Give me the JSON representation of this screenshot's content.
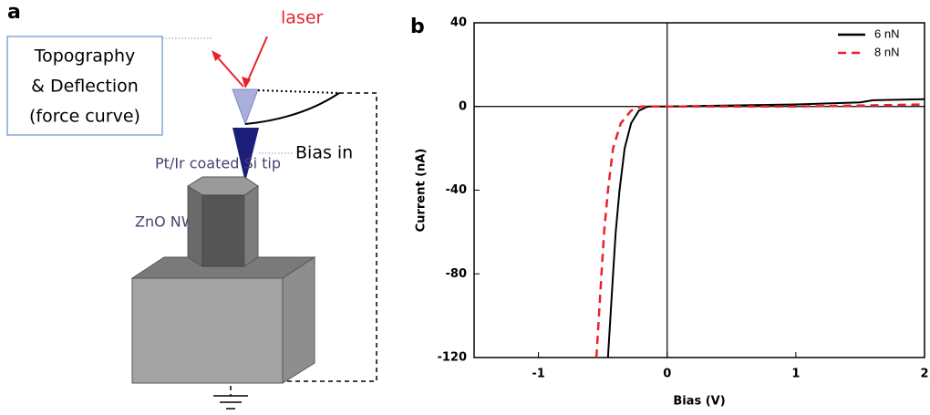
{
  "panels": {
    "a": "a",
    "b": "b"
  },
  "diagram": {
    "laser": "laser",
    "box_lines": [
      "Topography",
      "& Deflection",
      "(force curve)"
    ],
    "tip_label": "Pt/Ir coated Si tip",
    "bias_label": "Bias in",
    "nw_label": "ZnO NW"
  },
  "chart_data": {
    "type": "line",
    "xlabel": "Bias (V)",
    "ylabel": "Current (nA)",
    "xlim": [
      -1.5,
      2
    ],
    "xticks": [
      -1,
      0,
      1,
      2
    ],
    "ylim": [
      -120,
      40
    ],
    "yticks": [
      -120,
      -80,
      -40,
      0,
      40
    ],
    "zero_lines": true,
    "legend": "upper right",
    "series": [
      {
        "name": "6 nN",
        "color": "#000000",
        "dash": false,
        "x": [
          -0.46,
          -0.44,
          -0.42,
          -0.4,
          -0.37,
          -0.33,
          -0.28,
          -0.22,
          -0.15,
          0,
          0.5,
          1,
          1.5,
          1.6,
          2
        ],
        "values": [
          -120,
          -100,
          -80,
          -60,
          -40,
          -20,
          -8,
          -2,
          0,
          0,
          0.5,
          1,
          2,
          3,
          3.5
        ]
      },
      {
        "name": "8 nN",
        "color": "#e8222a",
        "dash": true,
        "x": [
          -0.55,
          -0.53,
          -0.51,
          -0.49,
          -0.46,
          -0.42,
          -0.36,
          -0.28,
          -0.2,
          0,
          1,
          2
        ],
        "values": [
          -120,
          -100,
          -80,
          -60,
          -40,
          -20,
          -8,
          -2,
          0,
          0,
          0,
          1
        ]
      }
    ]
  }
}
